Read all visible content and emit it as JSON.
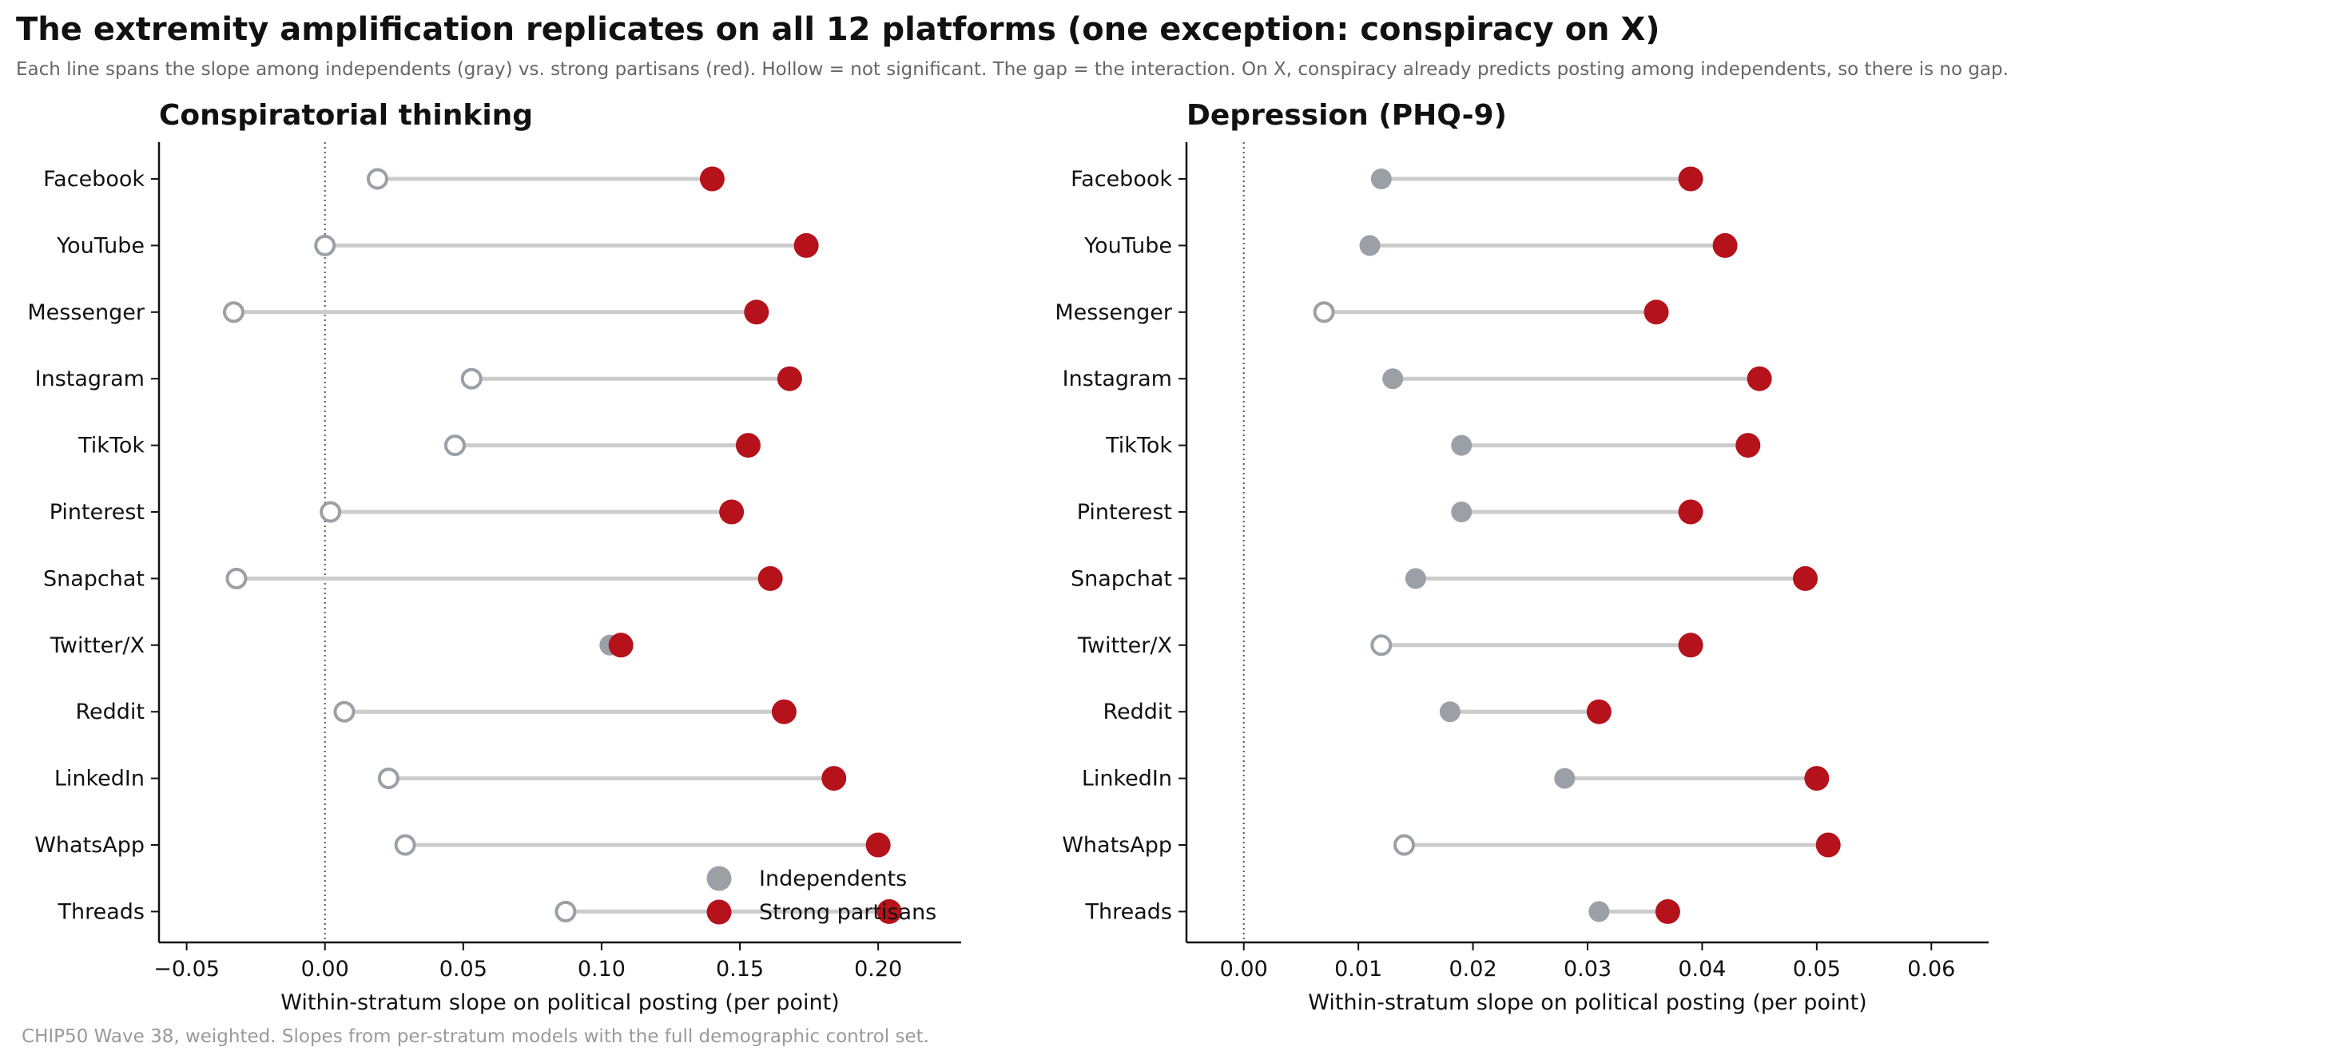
{
  "title": "The extremity amplification replicates on all 12 platforms (one exception: conspiracy on X)",
  "subtitle": "Each line spans the slope among independents (gray) vs. strong partisans (red). Hollow = not significant. The gap = the interaction. On X, conspiracy already predicts posting among independents, so there is no gap.",
  "footnote": "CHIP50 Wave 38, weighted. Slopes from per-stratum models with the full demographic control set.",
  "colors": {
    "independent": "#9aa0a6",
    "partisan": "#b5121b",
    "connector": "#cccccc"
  },
  "chart_data": [
    {
      "type": "dumbbell",
      "title": "Conspiratorial thinking",
      "xlabel": "Within-stratum slope on political posting (per point)",
      "xlim": [
        -0.06,
        0.23
      ],
      "xticks": [
        -0.05,
        0.0,
        0.05,
        0.1,
        0.15,
        0.2
      ],
      "xtick_labels": [
        "−0.05",
        "0.00",
        "0.05",
        "0.10",
        "0.15",
        "0.20"
      ],
      "zero_line": true,
      "legend": {
        "position": "lower-right",
        "entries": [
          "Independents",
          "Strong partisans"
        ]
      },
      "categories": [
        "Facebook",
        "YouTube",
        "Messenger",
        "Instagram",
        "TikTok",
        "Pinterest",
        "Snapchat",
        "Twitter/X",
        "Reddit",
        "LinkedIn",
        "WhatsApp",
        "Threads"
      ],
      "series": [
        {
          "name": "Independents",
          "values": [
            0.019,
            0.0,
            -0.033,
            0.053,
            0.047,
            0.002,
            -0.032,
            0.103,
            0.007,
            0.023,
            0.029,
            0.087
          ],
          "significant": [
            false,
            false,
            false,
            false,
            false,
            false,
            false,
            true,
            false,
            false,
            false,
            false
          ]
        },
        {
          "name": "Strong partisans",
          "values": [
            0.14,
            0.174,
            0.156,
            0.168,
            0.153,
            0.147,
            0.161,
            0.107,
            0.166,
            0.184,
            0.2,
            0.204
          ],
          "significant": [
            true,
            true,
            true,
            true,
            true,
            true,
            true,
            true,
            true,
            true,
            true,
            true
          ]
        }
      ]
    },
    {
      "type": "dumbbell",
      "title": "Depression (PHQ-9)",
      "xlabel": "Within-stratum slope on political posting (per point)",
      "xlim": [
        -0.005,
        0.065
      ],
      "xticks": [
        0.0,
        0.01,
        0.02,
        0.03,
        0.04,
        0.05,
        0.06
      ],
      "xtick_labels": [
        "0.00",
        "0.01",
        "0.02",
        "0.03",
        "0.04",
        "0.05",
        "0.06"
      ],
      "zero_line": true,
      "categories": [
        "Facebook",
        "YouTube",
        "Messenger",
        "Instagram",
        "TikTok",
        "Pinterest",
        "Snapchat",
        "Twitter/X",
        "Reddit",
        "LinkedIn",
        "WhatsApp",
        "Threads"
      ],
      "series": [
        {
          "name": "Independents",
          "values": [
            0.012,
            0.011,
            0.007,
            0.013,
            0.019,
            0.019,
            0.015,
            0.012,
            0.018,
            0.028,
            0.014,
            0.031
          ],
          "significant": [
            true,
            true,
            false,
            true,
            true,
            true,
            true,
            false,
            true,
            true,
            false,
            true
          ]
        },
        {
          "name": "Strong partisans",
          "values": [
            0.039,
            0.042,
            0.036,
            0.045,
            0.044,
            0.039,
            0.049,
            0.039,
            0.031,
            0.05,
            0.051,
            0.037
          ],
          "significant": [
            true,
            true,
            true,
            true,
            true,
            true,
            true,
            true,
            true,
            true,
            true,
            true
          ]
        }
      ]
    }
  ]
}
